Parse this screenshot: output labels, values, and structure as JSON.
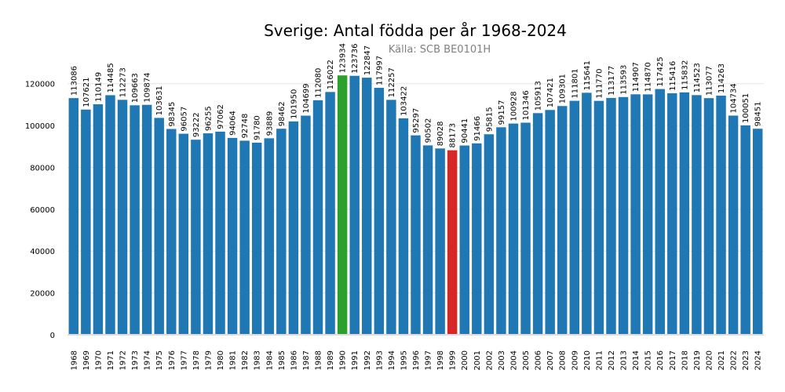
{
  "chart_data": {
    "type": "bar",
    "title": "Sverige: Antal födda per år 1968-2024",
    "subtitle": "Källa: SCB BE0101H",
    "xlabel": "",
    "ylabel": "",
    "ylim": [
      0,
      130000
    ],
    "yticks": [
      0,
      20000,
      40000,
      60000,
      80000,
      100000,
      120000
    ],
    "grid": "horizontal",
    "categories": [
      "1968",
      "1969",
      "1970",
      "1971",
      "1972",
      "1973",
      "1974",
      "1975",
      "1976",
      "1977",
      "1978",
      "1979",
      "1980",
      "1981",
      "1982",
      "1983",
      "1984",
      "1985",
      "1986",
      "1987",
      "1988",
      "1989",
      "1990",
      "1991",
      "1992",
      "1993",
      "1994",
      "1995",
      "1996",
      "1997",
      "1998",
      "1999",
      "2000",
      "2001",
      "2002",
      "2003",
      "2004",
      "2005",
      "2006",
      "2007",
      "2008",
      "2009",
      "2010",
      "2011",
      "2012",
      "2013",
      "2014",
      "2015",
      "2016",
      "2017",
      "2018",
      "2019",
      "2020",
      "2021",
      "2022",
      "2023",
      "2024"
    ],
    "values": [
      113086,
      107621,
      110149,
      114485,
      112273,
      109663,
      109874,
      103631,
      98345,
      96057,
      93222,
      96255,
      97062,
      94064,
      92748,
      91780,
      93889,
      98462,
      101950,
      104699,
      112080,
      116022,
      123934,
      123736,
      122847,
      117997,
      112257,
      103422,
      95297,
      90502,
      89028,
      88173,
      90441,
      91466,
      95815,
      99157,
      100928,
      101346,
      105913,
      107421,
      109301,
      111801,
      115641,
      111770,
      113177,
      113593,
      114907,
      114870,
      117425,
      115416,
      115832,
      114523,
      113077,
      114263,
      104734,
      100051,
      98451
    ],
    "colors": {
      "default": "#1f77b4",
      "max": "#2ca02c",
      "min": "#d62728"
    },
    "highlight": {
      "max_category": "1990",
      "min_category": "1999"
    }
  }
}
